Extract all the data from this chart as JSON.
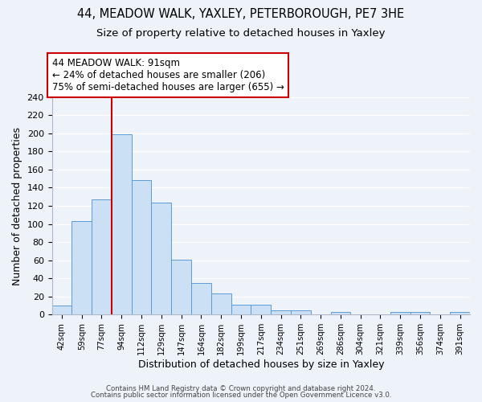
{
  "title1": "44, MEADOW WALK, YAXLEY, PETERBOROUGH, PE7 3HE",
  "title2": "Size of property relative to detached houses in Yaxley",
  "xlabel": "Distribution of detached houses by size in Yaxley",
  "ylabel": "Number of detached properties",
  "bin_labels": [
    "42sqm",
    "59sqm",
    "77sqm",
    "94sqm",
    "112sqm",
    "129sqm",
    "147sqm",
    "164sqm",
    "182sqm",
    "199sqm",
    "217sqm",
    "234sqm",
    "251sqm",
    "269sqm",
    "286sqm",
    "304sqm",
    "321sqm",
    "339sqm",
    "356sqm",
    "374sqm",
    "391sqm"
  ],
  "bar_values": [
    10,
    103,
    127,
    199,
    148,
    124,
    61,
    35,
    23,
    11,
    11,
    5,
    5,
    0,
    3,
    0,
    0,
    3,
    3,
    0,
    3
  ],
  "bar_color": "#cce0f5",
  "bar_edge_color": "#5b9bd5",
  "vline_x_idx": 3,
  "vline_color": "#cc0000",
  "annotation_title": "44 MEADOW WALK: 91sqm",
  "annotation_line1": "← 24% of detached houses are smaller (206)",
  "annotation_line2": "75% of semi-detached houses are larger (655) →",
  "annotation_box_color": "#ffffff",
  "annotation_box_edge": "#cc0000",
  "ylim": [
    0,
    240
  ],
  "yticks": [
    0,
    20,
    40,
    60,
    80,
    100,
    120,
    140,
    160,
    180,
    200,
    220,
    240
  ],
  "footer1": "Contains HM Land Registry data © Crown copyright and database right 2024.",
  "footer2": "Contains public sector information licensed under the Open Government Licence v3.0.",
  "background_color": "#eef2f9",
  "grid_color": "#ffffff",
  "title1_fontsize": 10.5,
  "title2_fontsize": 9.5
}
